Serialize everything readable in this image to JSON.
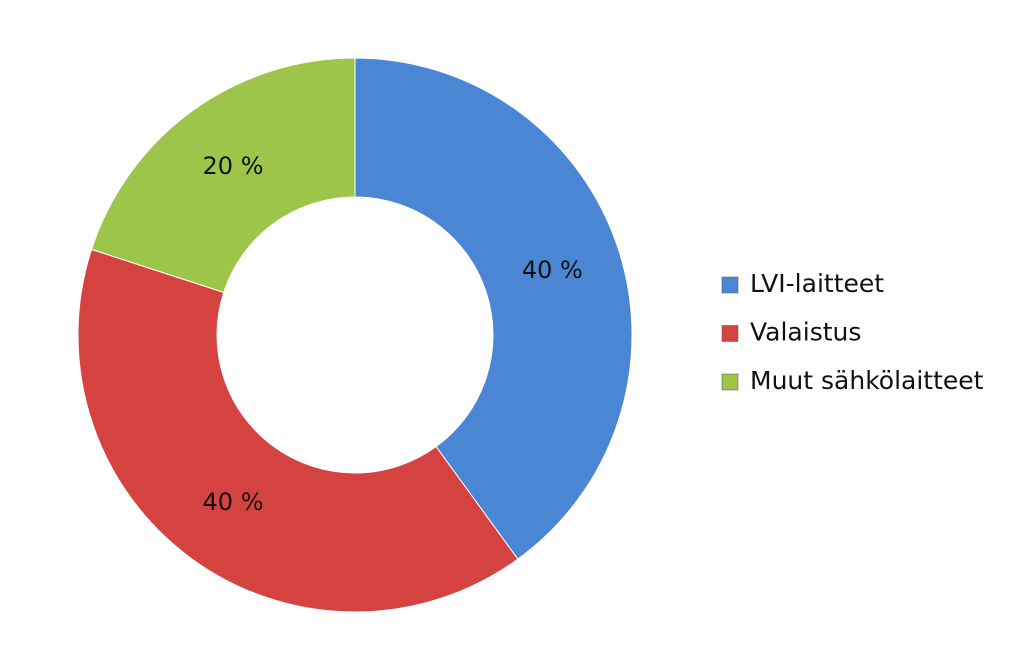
{
  "chart_data": {
    "type": "donut",
    "categories": [
      "LVI-laitteet",
      "Valaistus",
      "Muut sähkölaitteet"
    ],
    "values": [
      40,
      40,
      20
    ],
    "value_labels": [
      "40 %",
      "40 %",
      "20 %"
    ],
    "colors": [
      "#4a86d4",
      "#d4433f",
      "#9cc54a"
    ],
    "legend": "right"
  }
}
